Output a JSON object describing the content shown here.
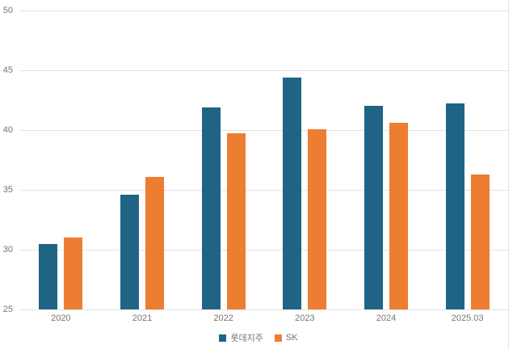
{
  "chart_data": {
    "type": "bar",
    "title": "",
    "categories": [
      "2020",
      "2021",
      "2022",
      "2023",
      "2024",
      "2025.03"
    ],
    "series": [
      {
        "name": "롯데지주",
        "color": "#1F6484",
        "values": [
          30.5,
          34.6,
          41.9,
          44.4,
          42.0,
          42.2
        ]
      },
      {
        "name": "SK",
        "color": "#ED7D31",
        "values": [
          31.0,
          36.1,
          39.7,
          40.1,
          40.6,
          36.3
        ]
      }
    ],
    "xlabel": "",
    "ylabel": "",
    "ylim": [
      25,
      50
    ],
    "yticks": [
      25,
      30,
      35,
      40,
      45,
      50
    ],
    "grid": true,
    "legend_position": "bottom"
  },
  "colors": {
    "background": "#FFFFFF",
    "gridline": "#E2E2E2",
    "axis_text": "#757575",
    "right_border": "#E5E5E5"
  }
}
